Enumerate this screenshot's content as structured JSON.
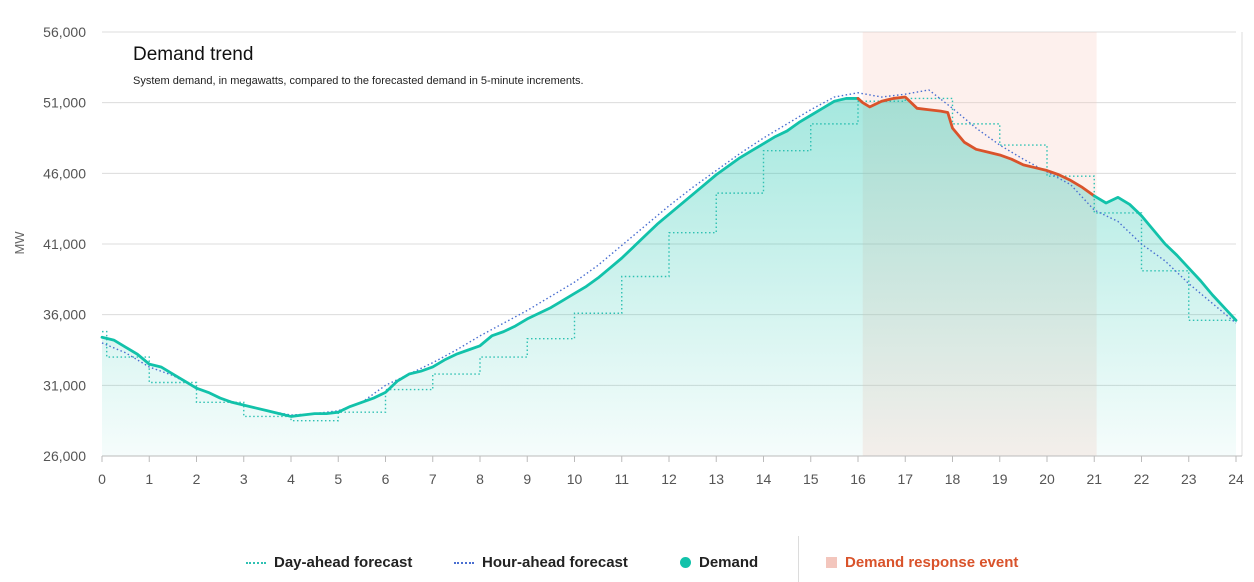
{
  "chart_data": {
    "type": "line",
    "title": "Demand trend",
    "subtitle": "System demand, in megawatts, compared to the forecasted demand in 5-minute increments.",
    "ylabel": "MW",
    "xlabel": "",
    "ylim": [
      26000,
      56000
    ],
    "xlim": [
      0,
      24
    ],
    "yticks": [
      26000,
      31000,
      36000,
      41000,
      46000,
      51000,
      56000
    ],
    "ytick_labels": [
      "26,000",
      "31,000",
      "36,000",
      "41,000",
      "46,000",
      "51,000",
      "56,000"
    ],
    "xticks": [
      0,
      1,
      2,
      3,
      4,
      5,
      6,
      7,
      8,
      9,
      10,
      11,
      12,
      13,
      14,
      15,
      16,
      17,
      18,
      19,
      20,
      21,
      22,
      23,
      24
    ],
    "xtick_labels": [
      "0",
      "1",
      "2",
      "3",
      "4",
      "5",
      "6",
      "7",
      "8",
      "9",
      "10",
      "11",
      "12",
      "13",
      "14",
      "15",
      "16",
      "17",
      "18",
      "19",
      "20",
      "21",
      "22",
      "23",
      "24"
    ],
    "grid": true,
    "legend_position": "bottom",
    "demand_response_event": {
      "start": 16.1,
      "end": 21.05
    },
    "series": [
      {
        "name": "Day-ahead forecast",
        "style": "dotted-step",
        "color": "#2fc1b3",
        "x": [
          0,
          0.1,
          1,
          2,
          3,
          4,
          5,
          6,
          7,
          8,
          9,
          10,
          11,
          12,
          13,
          14,
          15,
          16,
          17,
          18,
          19,
          20,
          21,
          22,
          23,
          24
        ],
        "values": [
          34800,
          33000,
          31200,
          29800,
          28800,
          28500,
          29100,
          30700,
          31800,
          33000,
          34300,
          36100,
          38700,
          41800,
          44600,
          47600,
          49500,
          51100,
          51300,
          49500,
          48000,
          45800,
          43200,
          39100,
          35600,
          35600
        ]
      },
      {
        "name": "Hour-ahead forecast",
        "style": "dotted",
        "color": "#4a6fd1",
        "x": [
          0,
          0.5,
          1,
          1.5,
          2,
          2.5,
          3,
          3.5,
          4,
          4.5,
          5,
          5.5,
          6,
          6.5,
          7,
          7.5,
          8,
          8.5,
          9,
          9.5,
          10,
          10.5,
          11,
          11.5,
          12,
          12.5,
          13,
          13.5,
          14,
          14.5,
          15,
          15.5,
          16,
          16.5,
          17,
          17.5,
          18,
          18.5,
          19,
          19.5,
          20,
          20.5,
          21,
          21.5,
          22,
          22.5,
          23,
          23.5,
          24
        ],
        "values": [
          34000,
          33300,
          32300,
          31700,
          30800,
          30100,
          29600,
          29200,
          28900,
          29000,
          29200,
          29800,
          31000,
          31800,
          32600,
          33500,
          34500,
          35400,
          36300,
          37300,
          38300,
          39500,
          40900,
          42300,
          43700,
          45000,
          46200,
          47400,
          48500,
          49500,
          50500,
          51400,
          51700,
          51400,
          51600,
          51900,
          50600,
          49200,
          48000,
          47000,
          46100,
          45200,
          43400,
          42600,
          41000,
          39800,
          38200,
          36800,
          35400
        ]
      },
      {
        "name": "Demand",
        "style": "solid",
        "color": "#12c2aa",
        "event_color": "#d9532b",
        "x": [
          0,
          0.25,
          0.5,
          0.75,
          1,
          1.25,
          1.5,
          1.75,
          2,
          2.25,
          2.5,
          2.75,
          3,
          3.25,
          3.5,
          3.75,
          4,
          4.25,
          4.5,
          4.75,
          5,
          5.25,
          5.5,
          5.75,
          6,
          6.25,
          6.5,
          6.75,
          7,
          7.25,
          7.5,
          7.75,
          8,
          8.25,
          8.5,
          8.75,
          9,
          9.25,
          9.5,
          9.75,
          10,
          10.25,
          10.5,
          10.75,
          11,
          11.25,
          11.5,
          11.75,
          12,
          12.25,
          12.5,
          12.75,
          13,
          13.25,
          13.5,
          13.75,
          14,
          14.25,
          14.5,
          14.75,
          15,
          15.25,
          15.5,
          15.75,
          16,
          16.1,
          16.25,
          16.5,
          16.75,
          17,
          17.25,
          17.5,
          17.75,
          17.9,
          18,
          18.25,
          18.5,
          18.75,
          19,
          19.25,
          19.5,
          19.75,
          20,
          20.25,
          20.5,
          20.75,
          21,
          21.25,
          21.5,
          21.75,
          22,
          22.25,
          22.5,
          22.75,
          23,
          23.25,
          23.5,
          23.75,
          24
        ],
        "values": [
          34400,
          34200,
          33700,
          33200,
          32500,
          32300,
          31800,
          31300,
          30800,
          30500,
          30100,
          29800,
          29600,
          29400,
          29200,
          29000,
          28800,
          28900,
          29000,
          29000,
          29100,
          29500,
          29800,
          30100,
          30500,
          31300,
          31800,
          32000,
          32300,
          32800,
          33200,
          33500,
          33800,
          34500,
          34800,
          35200,
          35700,
          36100,
          36500,
          37000,
          37500,
          38000,
          38600,
          39300,
          40000,
          40800,
          41600,
          42400,
          43100,
          43800,
          44500,
          45200,
          45900,
          46500,
          47100,
          47600,
          48100,
          48600,
          49000,
          49600,
          50100,
          50600,
          51100,
          51300,
          51300,
          51000,
          50700,
          51100,
          51300,
          51400,
          50600,
          50500,
          50400,
          50300,
          49200,
          48200,
          47700,
          47500,
          47300,
          47000,
          46600,
          46400,
          46200,
          45900,
          45500,
          45000,
          44400,
          43900,
          44300,
          43800,
          43000,
          42000,
          41000,
          40200,
          39300,
          38400,
          37400,
          36500,
          35600
        ]
      }
    ]
  },
  "legend": {
    "items": [
      {
        "label": "Day-ahead forecast"
      },
      {
        "label": "Hour-ahead forecast"
      },
      {
        "label": "Demand"
      },
      {
        "label": "Demand response event"
      }
    ]
  }
}
